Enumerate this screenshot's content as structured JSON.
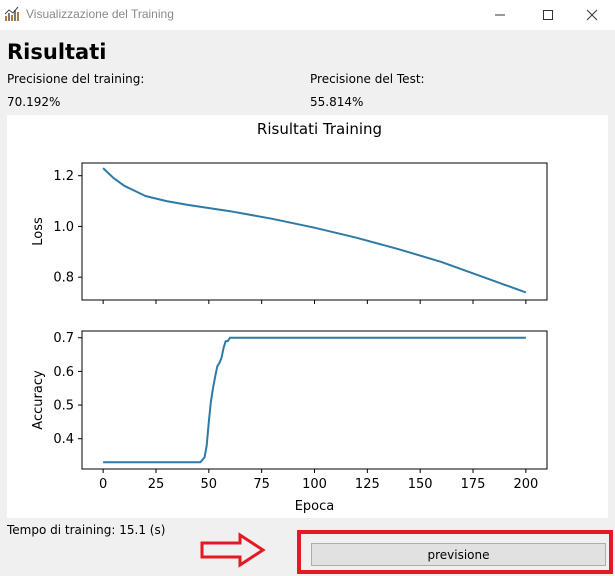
{
  "window": {
    "title": "Visualizzazione del Training"
  },
  "header": {
    "title": "Risultati",
    "train_label": "Precisione del training:",
    "train_value": "70.192%",
    "test_label": "Precisione del Test:",
    "test_value": "55.814%"
  },
  "chart_data": {
    "type": "line",
    "title": "Risultati Training",
    "xlabel": "Epoca",
    "x_ticks": [
      "0",
      "25",
      "50",
      "75",
      "100",
      "125",
      "150",
      "175",
      "200"
    ],
    "xlim": [
      -10,
      210
    ],
    "line_color": "#2e7aa6",
    "subplots": [
      {
        "ylabel": "Loss",
        "ylim": [
          0.71,
          1.25
        ],
        "y_ticks": [
          "0.8",
          "1.0",
          "1.2"
        ],
        "y_tick_values": [
          0.8,
          1.0,
          1.2
        ],
        "x": [
          0,
          5,
          10,
          15,
          20,
          30,
          40,
          60,
          80,
          100,
          120,
          140,
          160,
          180,
          190,
          200
        ],
        "y": [
          1.23,
          1.19,
          1.16,
          1.14,
          1.12,
          1.1,
          1.085,
          1.06,
          1.03,
          0.995,
          0.955,
          0.91,
          0.86,
          0.8,
          0.77,
          0.74
        ]
      },
      {
        "ylabel": "Accuracy",
        "ylim": [
          0.31,
          0.72
        ],
        "y_ticks": [
          "0.4",
          "0.5",
          "0.6",
          "0.7"
        ],
        "y_tick_values": [
          0.4,
          0.5,
          0.6,
          0.7
        ],
        "x": [
          0,
          46,
          48,
          49,
          50,
          51,
          52,
          53,
          54,
          55,
          56,
          57,
          58,
          59,
          60,
          61,
          62,
          200
        ],
        "y": [
          0.33,
          0.33,
          0.345,
          0.38,
          0.45,
          0.51,
          0.55,
          0.585,
          0.615,
          0.625,
          0.64,
          0.67,
          0.69,
          0.69,
          0.7,
          0.7,
          0.7,
          0.7
        ]
      }
    ]
  },
  "footer": {
    "training_time": "Tempo di training: 15.1 (s)",
    "predict_button": "previsione",
    "highlight_color": "#e21b23"
  }
}
